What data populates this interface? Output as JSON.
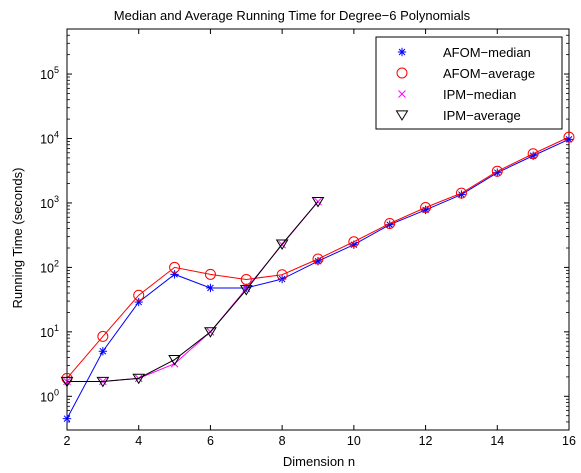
{
  "chart_data": {
    "type": "line",
    "title": "Median and Average Running Time for Degree−6 Polynomials",
    "xlabel": "Dimension n",
    "ylabel": "Running Time (seconds)",
    "xlim": [
      2,
      16
    ],
    "ylim": [
      0.3,
      500000
    ],
    "yscale": "log",
    "x_ticks": [
      2,
      4,
      6,
      8,
      10,
      12,
      14,
      16
    ],
    "y_ticks": [
      {
        "value": 1,
        "base": "10",
        "exp": "0"
      },
      {
        "value": 10,
        "base": "10",
        "exp": "1"
      },
      {
        "value": 100,
        "base": "10",
        "exp": "2"
      },
      {
        "value": 1000,
        "base": "10",
        "exp": "3"
      },
      {
        "value": 10000,
        "base": "10",
        "exp": "4"
      },
      {
        "value": 100000,
        "base": "10",
        "exp": "5"
      }
    ],
    "grid": false,
    "legend_position": "top-right",
    "series": [
      {
        "name": "AFOM−median",
        "marker": "asterisk",
        "color": "#0000ff",
        "x": [
          2,
          3,
          4,
          5,
          6,
          7,
          8,
          9,
          10,
          11,
          12,
          13,
          14,
          15,
          16
        ],
        "y": [
          0.45,
          5,
          29,
          78,
          48,
          48,
          66,
          125,
          225,
          460,
          780,
          1350,
          2950,
          5400,
          9700
        ]
      },
      {
        "name": "AFOM−average",
        "marker": "circle",
        "color": "#ff0000",
        "x": [
          2,
          3,
          4,
          5,
          6,
          7,
          8,
          9,
          10,
          11,
          12,
          13,
          14,
          15,
          16
        ],
        "y": [
          1.9,
          8.5,
          37,
          100,
          78,
          65,
          77,
          135,
          250,
          480,
          850,
          1420,
          3100,
          5800,
          10500
        ]
      },
      {
        "name": "IPM−median",
        "marker": "x",
        "color": "#ff00ff",
        "x": [
          2,
          3,
          4,
          5,
          6,
          7,
          8,
          9
        ],
        "y": [
          1.7,
          1.7,
          1.9,
          3.2,
          10,
          47,
          225,
          1050
        ]
      },
      {
        "name": "IPM−average",
        "marker": "triangle-down",
        "color": "#000000",
        "x": [
          2,
          3,
          4,
          5,
          6,
          7,
          8,
          9
        ],
        "y": [
          1.7,
          1.7,
          1.9,
          3.7,
          10,
          45,
          230,
          1050
        ]
      }
    ]
  }
}
